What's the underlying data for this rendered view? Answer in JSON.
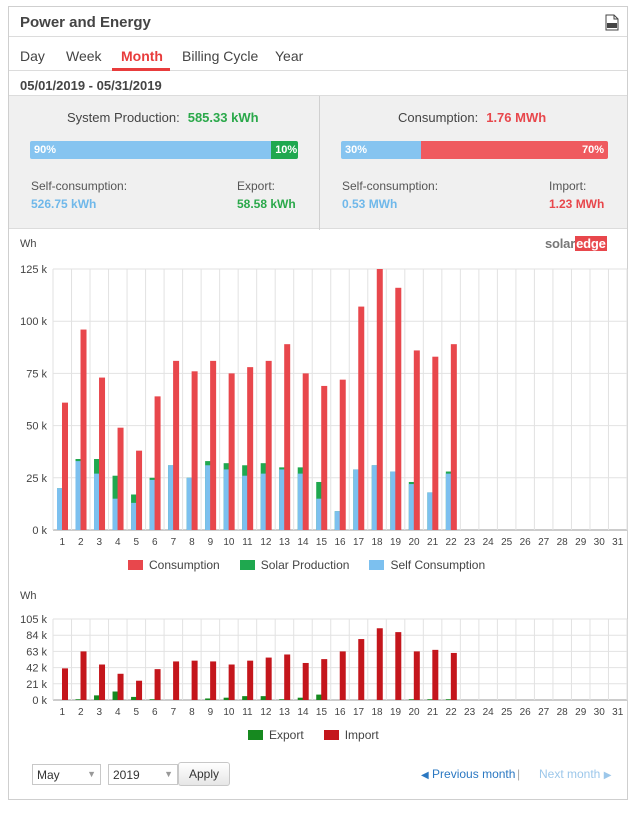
{
  "header": {
    "title": "Power and Energy",
    "csv_icon": "csv-file-icon"
  },
  "tabs": [
    {
      "label": "Day",
      "active": false
    },
    {
      "label": "Week",
      "active": false
    },
    {
      "label": "Month",
      "active": true
    },
    {
      "label": "Billing Cycle",
      "active": false
    },
    {
      "label": "Year",
      "active": false
    }
  ],
  "date_range": "05/01/2019 - 05/31/2019",
  "production": {
    "label": "System Production:",
    "value": "585.33 kWh",
    "self_pct": 90,
    "self_pct_label": "90%",
    "export_pct": 10,
    "export_pct_label": "10%",
    "self_label": "Self-consumption:",
    "self_value": "526.75 kWh",
    "export_label": "Export:",
    "export_value": "58.58 kWh"
  },
  "consumption": {
    "label": "Consumption:",
    "value": "1.76 MWh",
    "self_pct": 30,
    "self_pct_label": "30%",
    "import_pct": 70,
    "import_pct_label": "70%",
    "self_label": "Self-consumption:",
    "self_value": "0.53 MWh",
    "import_label": "Import:",
    "import_value": "1.23 MWh"
  },
  "logo": {
    "solar": "solar",
    "edge": "edge"
  },
  "colors": {
    "consumption": "#e8474c",
    "production": "#1fa84f",
    "self": "#7cc0ef",
    "export": "#16891f",
    "import": "#c4161c",
    "bar_blue": "#86c4f0",
    "bar_green": "#1fa84f",
    "bar_red": "#ef5a5f"
  },
  "chart_data": [
    {
      "type": "bar",
      "ylabel": "Wh",
      "ylim": [
        0,
        125000
      ],
      "yticks": [
        0,
        25000,
        50000,
        75000,
        100000,
        125000
      ],
      "ytick_labels": [
        "0 k",
        "25 k",
        "50 k",
        "75 k",
        "100 k",
        "125 k"
      ],
      "categories": [
        "1",
        "2",
        "3",
        "4",
        "5",
        "6",
        "7",
        "8",
        "9",
        "10",
        "11",
        "12",
        "13",
        "14",
        "15",
        "16",
        "17",
        "18",
        "19",
        "20",
        "21",
        "22",
        "23",
        "24",
        "25",
        "26",
        "27",
        "28",
        "29",
        "30",
        "31"
      ],
      "series": [
        {
          "name": "Consumption",
          "values": [
            61000,
            96000,
            73000,
            49000,
            38000,
            64000,
            81000,
            76000,
            81000,
            75000,
            78000,
            81000,
            89000,
            75000,
            69000,
            72000,
            107000,
            125000,
            116000,
            86000,
            83000,
            89000,
            null,
            null,
            null,
            null,
            null,
            null,
            null,
            null,
            null
          ]
        },
        {
          "name": "Solar Production",
          "values": [
            20000,
            34000,
            34000,
            26000,
            17000,
            25000,
            31000,
            25000,
            33000,
            32000,
            31000,
            32000,
            30000,
            30000,
            23000,
            9000,
            29000,
            31000,
            28000,
            23000,
            18000,
            28000,
            null,
            null,
            null,
            null,
            null,
            null,
            null,
            null,
            null
          ]
        },
        {
          "name": "Self Consumption",
          "values": [
            20000,
            33000,
            27000,
            15000,
            13000,
            24000,
            31000,
            25000,
            31000,
            29000,
            26000,
            27000,
            29000,
            27000,
            15000,
            9000,
            29000,
            31000,
            28000,
            22000,
            18000,
            27000,
            null,
            null,
            null,
            null,
            null,
            null,
            null,
            null,
            null
          ]
        }
      ],
      "legend": "bottom"
    },
    {
      "type": "bar",
      "ylabel": "Wh",
      "ylim": [
        0,
        105000
      ],
      "yticks": [
        0,
        21000,
        42000,
        63000,
        84000,
        105000
      ],
      "ytick_labels": [
        "0 k",
        "21 k",
        "42 k",
        "63 k",
        "84 k",
        "105 k"
      ],
      "categories": [
        "1",
        "2",
        "3",
        "4",
        "5",
        "6",
        "7",
        "8",
        "9",
        "10",
        "11",
        "12",
        "13",
        "14",
        "15",
        "16",
        "17",
        "18",
        "19",
        "20",
        "21",
        "22",
        "23",
        "24",
        "25",
        "26",
        "27",
        "28",
        "29",
        "30",
        "31"
      ],
      "series": [
        {
          "name": "Export",
          "values": [
            0,
            1000,
            6000,
            11000,
            4000,
            1000,
            0,
            0,
            2000,
            3000,
            5000,
            5000,
            1000,
            3000,
            7000,
            0,
            0,
            0,
            0,
            1000,
            1000,
            1000,
            null,
            null,
            null,
            null,
            null,
            null,
            null,
            null,
            null
          ]
        },
        {
          "name": "Import",
          "values": [
            41000,
            63000,
            46000,
            34000,
            25000,
            40000,
            50000,
            51000,
            50000,
            46000,
            51000,
            55000,
            59000,
            48000,
            53000,
            63000,
            79000,
            93000,
            88000,
            63000,
            65000,
            61000,
            null,
            null,
            null,
            null,
            null,
            null,
            null,
            null,
            null
          ]
        }
      ],
      "legend": "bottom"
    }
  ],
  "controls": {
    "month_value": "May",
    "year_value": "2019",
    "apply_label": "Apply",
    "prev_label": "Previous month",
    "next_label": "Next month",
    "separator": "|"
  }
}
